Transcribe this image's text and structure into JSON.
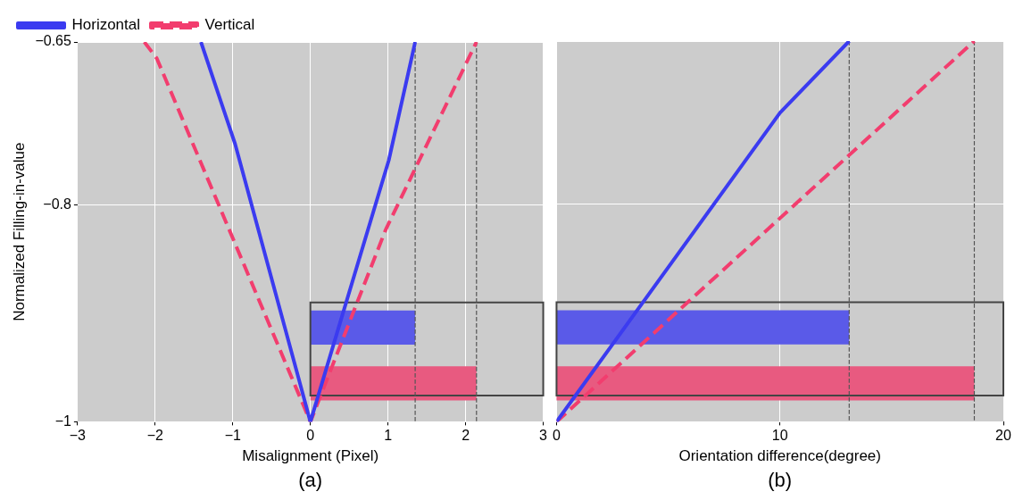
{
  "chart_data": [
    {
      "type": "line",
      "xlabel": "Misalignment (Pixel)",
      "ylabel": "Normalized Filling-in-value",
      "annotations": [
        "(a)"
      ],
      "xlim": [
        -3,
        3
      ],
      "xticks": [
        {
          "value": -3,
          "label": "−3"
        },
        {
          "value": -2,
          "label": "−2"
        },
        {
          "value": -1,
          "label": "−1"
        },
        0,
        1,
        2,
        3
      ],
      "ylim": [
        -1,
        -0.65
      ],
      "yticks": [
        {
          "value": -1,
          "label": "−1"
        },
        {
          "value": -0.8,
          "label": "−0.8"
        },
        {
          "value": -0.65,
          "label": "−0.65"
        }
      ],
      "grid": true,
      "legend": "top left",
      "marker": "none",
      "series": [
        {
          "name": "Horizontal",
          "color": "#3b3bf0",
          "line_style": "solid",
          "x": [
            -1.41,
            -0.97,
            0,
            1.01,
            1.35
          ],
          "values": [
            -0.65,
            -0.744,
            -1,
            -0.759,
            -0.65
          ]
        },
        {
          "name": "Vertical",
          "color": "#f23d6e",
          "line_style": "dashed",
          "x": [
            -2.14,
            -1.98,
            0,
            0.97,
            2.14
          ],
          "values": [
            -0.65,
            -0.665,
            -1,
            -0.823,
            -0.65
          ]
        }
      ],
      "ref_lines": [
        {
          "axis": "x",
          "value": 1.35,
          "color": "#555555",
          "line_style": "dashed"
        },
        {
          "axis": "x",
          "value": 2.14,
          "color": "#555555",
          "line_style": "dashed"
        }
      ],
      "bands": [
        {
          "axis": "x",
          "from": 0,
          "to": 1.35,
          "color": "#5a5ae8"
        },
        {
          "axis": "x",
          "from": 0,
          "to": 2.14,
          "color": "#e85a80"
        }
      ]
    },
    {
      "type": "line",
      "xlabel": "Orientation difference(degree)",
      "annotations": [
        "(b)"
      ],
      "xlim": [
        0,
        20
      ],
      "xticks": [
        0,
        10,
        20
      ],
      "ylim": [
        -1,
        -0.65
      ],
      "yticks": [
        -1,
        -0.8,
        -0.65
      ],
      "tick_labels": "x",
      "grid": true,
      "marker": "none",
      "series": [
        {
          "color": "#3b3bf0",
          "line_style": "solid",
          "x": [
            0,
            10,
            13.1
          ],
          "values": [
            -1,
            -0.716,
            -0.65
          ]
        },
        {
          "color": "#f23d6e",
          "line_style": "dashed",
          "x": [
            0,
            18.7
          ],
          "values": [
            -1,
            -0.65
          ]
        }
      ],
      "ref_lines": [
        {
          "axis": "x",
          "value": 13.1,
          "color": "#555555",
          "line_style": "dashed"
        },
        {
          "axis": "x",
          "value": 18.7,
          "color": "#555555",
          "line_style": "dashed"
        }
      ],
      "bands": [
        {
          "axis": "x",
          "from": 0,
          "to": 13.1,
          "color": "#5a5ae8"
        },
        {
          "axis": "x",
          "from": 0,
          "to": 18.7,
          "color": "#e85a80"
        }
      ]
    }
  ]
}
